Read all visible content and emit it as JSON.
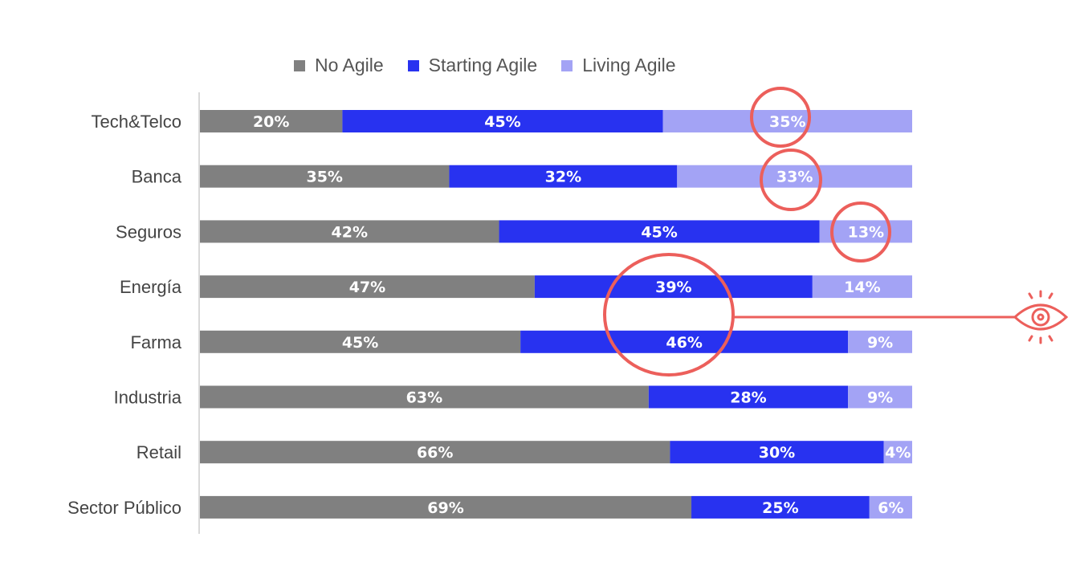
{
  "chart_data": {
    "type": "bar",
    "orientation": "horizontal",
    "stacked": true,
    "categories": [
      "Tech&Telco",
      "Banca",
      "Seguros",
      "Energía",
      "Farma",
      "Industria",
      "Retail",
      "Sector Público"
    ],
    "series": [
      {
        "name": "No Agile",
        "color": "#808080",
        "values": [
          20,
          35,
          42,
          47,
          45,
          63,
          66,
          69
        ]
      },
      {
        "name": "Starting Agile",
        "color": "#2832f0",
        "values": [
          45,
          32,
          45,
          39,
          46,
          28,
          30,
          25
        ]
      },
      {
        "name": "Living Agile",
        "color": "#a3a3f5",
        "values": [
          35,
          33,
          13,
          14,
          9,
          9,
          4,
          6
        ]
      }
    ],
    "value_suffix": "%",
    "xlim": [
      0,
      100
    ],
    "grid": false,
    "legend_position": "top",
    "annotations": {
      "color": "#ec5f5b",
      "circled": [
        {
          "category": "Tech&Telco",
          "series": "Living Agile"
        },
        {
          "category": "Banca",
          "series": "Living Agile"
        },
        {
          "category": "Seguros",
          "series": "Living Agile"
        },
        {
          "categories": [
            "Energía",
            "Farma"
          ],
          "series": "Starting Agile"
        }
      ],
      "icon": "eye-icon"
    }
  }
}
